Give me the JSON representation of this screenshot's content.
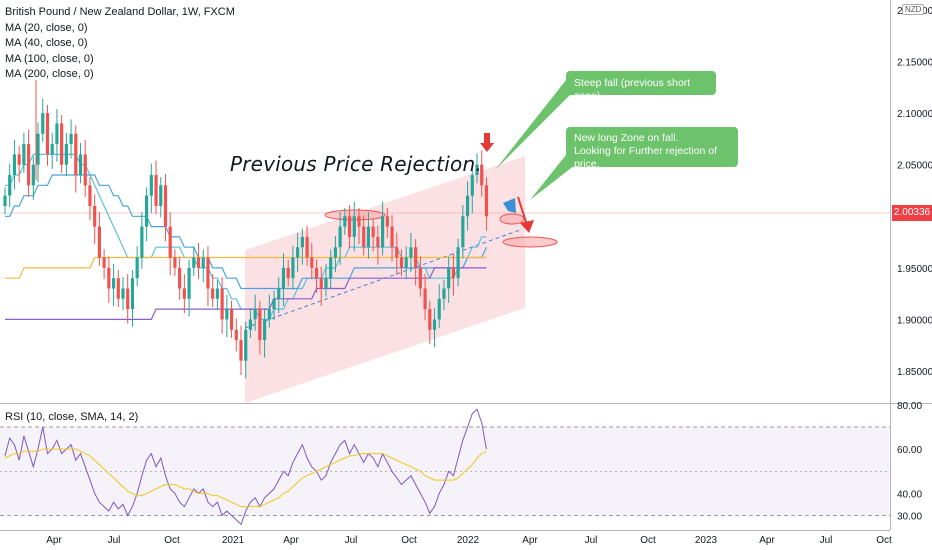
{
  "legend": {
    "title": "British Pound / New Zealand Dollar, 1W, FXCM",
    "ma_lines": [
      "MA (20, close, 0)",
      "MA (40, close, 0)",
      "MA (100, close, 0)",
      "MA (200, close, 0)"
    ]
  },
  "rsi_legend": "RSI (10, close, SMA, 14, 2)",
  "annotations": {
    "rejection": "Previous Price Rejection.",
    "callout1": "Steep fall (previous short zone).",
    "callout2_line1": "New long Zone on fall.",
    "callout2_line2": "Looking for Further rejection of price."
  },
  "currency_badge": "NZD",
  "last_price": "2.00336",
  "colors": {
    "up": "#26a69a",
    "down": "#ef5350",
    "ma20": "#5bc0de",
    "ma40": "#4aa3df",
    "ma100": "#f5b942",
    "ma200": "#8a5fc7",
    "rsi": "#7e57c2",
    "rsi_ma": "#f5c518",
    "channel": "#f8c9cd",
    "callout": "#6cc36c"
  },
  "chart_data": [
    {
      "type": "candlestick",
      "title": "British Pound / New Zealand Dollar, 1W, FXCM",
      "ylim": [
        1.8,
        2.2
      ],
      "y_ticks": [
        "1.85000",
        "1.90000",
        "1.95000",
        "2.00000",
        "2.05000",
        "2.10000",
        "2.15000",
        "2.20000"
      ],
      "x_ticks": [
        "Apr",
        "Jul",
        "Oct",
        "2021",
        "Apr",
        "Jul",
        "Oct",
        "2022",
        "Apr",
        "Jul",
        "Oct",
        "2023",
        "Apr",
        "Jul",
        "Oct"
      ],
      "close_series": [
        2.02,
        2.04,
        2.06,
        2.05,
        2.07,
        2.03,
        2.05,
        2.08,
        2.1,
        2.06,
        2.07,
        2.09,
        2.05,
        2.07,
        2.08,
        2.04,
        2.06,
        2.03,
        2.01,
        1.99,
        1.96,
        1.95,
        1.93,
        1.94,
        1.92,
        1.93,
        1.91,
        1.94,
        1.96,
        1.99,
        2.02,
        2.04,
        2.01,
        2.03,
        1.99,
        1.96,
        1.95,
        1.93,
        1.92,
        1.95,
        1.96,
        1.95,
        1.96,
        1.93,
        1.92,
        1.93,
        1.9,
        1.91,
        1.89,
        1.88,
        1.86,
        1.89,
        1.9,
        1.91,
        1.88,
        1.9,
        1.91,
        1.92,
        1.93,
        1.95,
        1.94,
        1.96,
        1.97,
        1.98,
        1.96,
        1.95,
        1.94,
        1.93,
        1.94,
        1.96,
        1.97,
        1.99,
        2.0,
        1.98,
        2.0,
        1.99,
        1.97,
        1.99,
        1.98,
        1.97,
        2.0,
        1.99,
        1.97,
        1.96,
        1.95,
        1.96,
        1.97,
        1.95,
        1.93,
        1.91,
        1.89,
        1.9,
        1.92,
        1.93,
        1.95,
        1.94,
        1.97,
        2.0,
        2.02,
        2.04,
        2.05,
        2.03,
        2.0
      ],
      "series": [
        {
          "name": "MA (20, close, 0)",
          "values": [
            2.03,
            2.03,
            2.04,
            2.04,
            2.05,
            2.05,
            2.06,
            2.06,
            2.06,
            2.06,
            2.06,
            2.06,
            2.06,
            2.06,
            2.06,
            2.06,
            2.05,
            2.05,
            2.04,
            2.03,
            2.02,
            2.01,
            2.0,
            1.99,
            1.98,
            1.97,
            1.96,
            1.96,
            1.96,
            1.96,
            1.96,
            1.96,
            1.97,
            1.97,
            1.97,
            1.97,
            1.97,
            1.97,
            1.96,
            1.96,
            1.96,
            1.95,
            1.95,
            1.95,
            1.94,
            1.94,
            1.93,
            1.93,
            1.92,
            1.92,
            1.91,
            1.91,
            1.91,
            1.91,
            1.9,
            1.9,
            1.9,
            1.91,
            1.91,
            1.91,
            1.92,
            1.92,
            1.93,
            1.93,
            1.94,
            1.94,
            1.94,
            1.94,
            1.95,
            1.95,
            1.95,
            1.96,
            1.96,
            1.97,
            1.97,
            1.97,
            1.97,
            1.97,
            1.97,
            1.97,
            1.97,
            1.97,
            1.97,
            1.97,
            1.96,
            1.96,
            1.96,
            1.96,
            1.95,
            1.95,
            1.94,
            1.94,
            1.94,
            1.94,
            1.94,
            1.94,
            1.95,
            1.95,
            1.96,
            1.97,
            1.97,
            1.98,
            1.98
          ]
        },
        {
          "name": "MA (40, close, 0)",
          "values": [
            2.0,
            2.0,
            2.01,
            2.01,
            2.02,
            2.02,
            2.02,
            2.03,
            2.03,
            2.03,
            2.04,
            2.04,
            2.04,
            2.04,
            2.04,
            2.04,
            2.04,
            2.04,
            2.04,
            2.04,
            2.03,
            2.03,
            2.03,
            2.02,
            2.02,
            2.01,
            2.01,
            2.0,
            2.0,
            2.0,
            2.0,
            1.99,
            1.99,
            1.99,
            1.99,
            1.98,
            1.98,
            1.98,
            1.97,
            1.97,
            1.97,
            1.96,
            1.96,
            1.96,
            1.95,
            1.95,
            1.95,
            1.94,
            1.94,
            1.94,
            1.93,
            1.93,
            1.93,
            1.93,
            1.93,
            1.93,
            1.93,
            1.93,
            1.93,
            1.93,
            1.93,
            1.93,
            1.93,
            1.94,
            1.94,
            1.94,
            1.94,
            1.94,
            1.94,
            1.94,
            1.94,
            1.94,
            1.94,
            1.94,
            1.95,
            1.95,
            1.95,
            1.95,
            1.95,
            1.95,
            1.95,
            1.95,
            1.95,
            1.95,
            1.95,
            1.95,
            1.95,
            1.95,
            1.95,
            1.95,
            1.95,
            1.95,
            1.95,
            1.95,
            1.95,
            1.95,
            1.95,
            1.95,
            1.96,
            1.96,
            1.96,
            1.96,
            1.97
          ]
        },
        {
          "name": "MA (100, close, 0)",
          "values": [
            1.94,
            1.94,
            1.94,
            1.94,
            1.95,
            1.95,
            1.95,
            1.95,
            1.95,
            1.95,
            1.95,
            1.95,
            1.95,
            1.95,
            1.95,
            1.95,
            1.95,
            1.95,
            1.95,
            1.96,
            1.96,
            1.96,
            1.96,
            1.96,
            1.96,
            1.96,
            1.96,
            1.96,
            1.96,
            1.96,
            1.96,
            1.96,
            1.96,
            1.96,
            1.96,
            1.96,
            1.96,
            1.96,
            1.96,
            1.96,
            1.96,
            1.96,
            1.96,
            1.96,
            1.96,
            1.96,
            1.96,
            1.96,
            1.96,
            1.96,
            1.96,
            1.96,
            1.96,
            1.96,
            1.96,
            1.96,
            1.96,
            1.96,
            1.96,
            1.96,
            1.96,
            1.96,
            1.96,
            1.96,
            1.96,
            1.96,
            1.96,
            1.96,
            1.96,
            1.96,
            1.96,
            1.96,
            1.96,
            1.96,
            1.96,
            1.96,
            1.96,
            1.96,
            1.96,
            1.96,
            1.96,
            1.96,
            1.96,
            1.96,
            1.96,
            1.96,
            1.96,
            1.96,
            1.96,
            1.96,
            1.96,
            1.96,
            1.96,
            1.96,
            1.96,
            1.96,
            1.96,
            1.96,
            1.96,
            1.96,
            1.96,
            1.96,
            1.96
          ]
        },
        {
          "name": "MA (200, close, 0)",
          "values": [
            1.9,
            1.9,
            1.9,
            1.9,
            1.9,
            1.9,
            1.9,
            1.9,
            1.9,
            1.9,
            1.9,
            1.9,
            1.9,
            1.9,
            1.9,
            1.9,
            1.9,
            1.9,
            1.9,
            1.9,
            1.9,
            1.9,
            1.9,
            1.9,
            1.9,
            1.9,
            1.9,
            1.9,
            1.9,
            1.9,
            1.9,
            1.9,
            1.91,
            1.91,
            1.91,
            1.91,
            1.91,
            1.91,
            1.91,
            1.91,
            1.91,
            1.91,
            1.91,
            1.91,
            1.91,
            1.91,
            1.91,
            1.91,
            1.91,
            1.91,
            1.91,
            1.91,
            1.91,
            1.91,
            1.91,
            1.91,
            1.91,
            1.92,
            1.92,
            1.92,
            1.92,
            1.92,
            1.92,
            1.92,
            1.92,
            1.92,
            1.93,
            1.93,
            1.93,
            1.93,
            1.93,
            1.93,
            1.93,
            1.94,
            1.94,
            1.94,
            1.94,
            1.94,
            1.94,
            1.94,
            1.94,
            1.94,
            1.94,
            1.94,
            1.94,
            1.94,
            1.94,
            1.94,
            1.94,
            1.94,
            1.94,
            1.95,
            1.95,
            1.95,
            1.95,
            1.95,
            1.95,
            1.95,
            1.95,
            1.95,
            1.95,
            1.95,
            1.95
          ]
        }
      ]
    },
    {
      "type": "line",
      "title": "RSI (10, close, SMA, 14, 2)",
      "ylim": [
        25,
        82
      ],
      "y_ticks": [
        "30.00",
        "40.00",
        "60.00",
        "80.00"
      ],
      "series": [
        {
          "name": "RSI",
          "values": [
            57,
            65,
            62,
            55,
            66,
            59,
            52,
            60,
            70,
            58,
            60,
            64,
            58,
            60,
            62,
            55,
            58,
            52,
            46,
            40,
            36,
            34,
            32,
            36,
            33,
            35,
            30,
            34,
            40,
            48,
            55,
            58,
            52,
            56,
            48,
            42,
            40,
            36,
            34,
            38,
            42,
            40,
            42,
            36,
            34,
            36,
            30,
            32,
            30,
            28,
            26,
            32,
            36,
            38,
            34,
            38,
            40,
            42,
            46,
            50,
            48,
            54,
            58,
            62,
            56,
            52,
            50,
            46,
            48,
            54,
            58,
            62,
            64,
            58,
            62,
            58,
            54,
            58,
            56,
            52,
            58,
            54,
            50,
            47,
            44,
            46,
            48,
            44,
            40,
            36,
            31,
            34,
            40,
            44,
            50,
            48,
            56,
            64,
            70,
            76,
            78,
            72,
            60
          ]
        },
        {
          "name": "SMA",
          "values": [
            56,
            57,
            58,
            58,
            59,
            59,
            59,
            59,
            60,
            60,
            60,
            60,
            60,
            60,
            60,
            60,
            59,
            58,
            57,
            55,
            53,
            51,
            49,
            47,
            45,
            43,
            41,
            40,
            39,
            39,
            40,
            41,
            42,
            43,
            44,
            44,
            44,
            43,
            42,
            42,
            41,
            40,
            40,
            40,
            39,
            39,
            38,
            37,
            36,
            35,
            34,
            34,
            34,
            34,
            34,
            35,
            36,
            37,
            38,
            40,
            41,
            43,
            45,
            47,
            48,
            49,
            50,
            51,
            52,
            53,
            54,
            55,
            56,
            57,
            57,
            58,
            58,
            58,
            58,
            58,
            58,
            57,
            56,
            55,
            54,
            53,
            52,
            51,
            50,
            48,
            47,
            46,
            46,
            46,
            46,
            46,
            47,
            49,
            51,
            53,
            56,
            58,
            59
          ]
        }
      ]
    }
  ]
}
